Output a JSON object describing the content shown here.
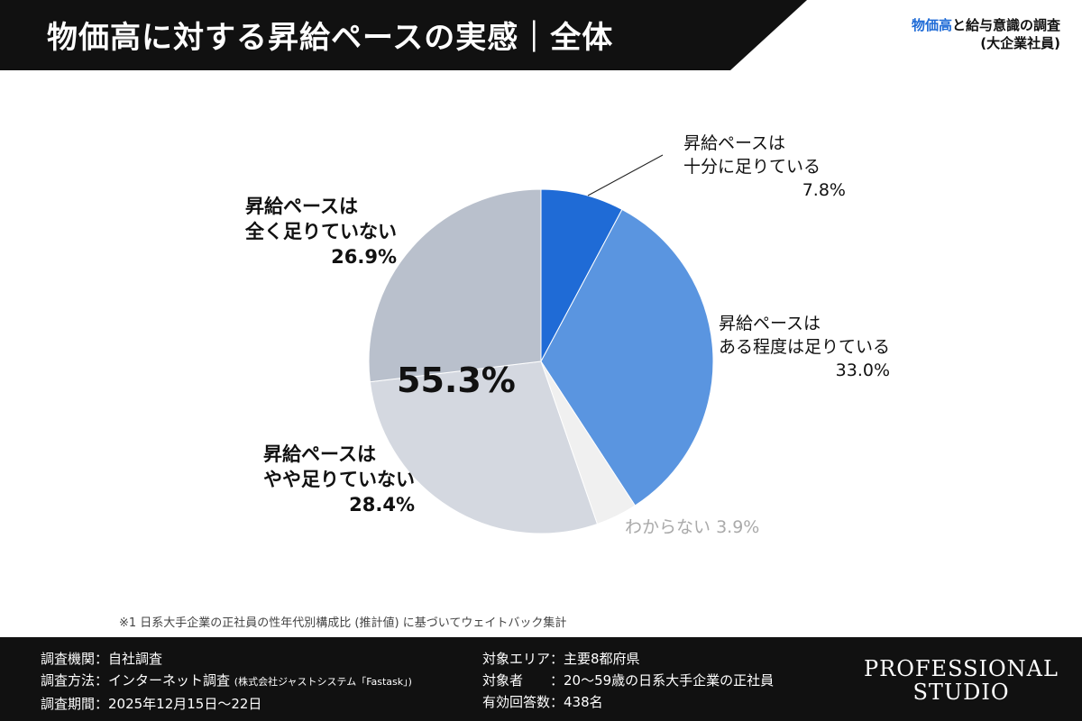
{
  "header": {
    "title": "物価高に対する昇給ペースの実感｜全体",
    "series_highlight": "物価高",
    "series_rest": "と給与意識の調査",
    "series_sub": "(大企業社員)"
  },
  "chart_data": {
    "type": "pie",
    "start": "top",
    "direction": "clockwise",
    "slices": [
      {
        "label": "昇給ペースは十分に足りている",
        "lines": [
          "昇給ペースは",
          "十分に足りている"
        ],
        "value": 7.8,
        "value_label": "7.8%",
        "color": "#1f6bd6"
      },
      {
        "label": "昇給ペースはある程度は足りている",
        "lines": [
          "昇給ペースは",
          "ある程度は足りている"
        ],
        "value": 33.0,
        "value_label": "33.0%",
        "color": "#5a95e0"
      },
      {
        "label": "わからない",
        "lines": [
          "わからない"
        ],
        "value": 3.9,
        "value_label": "3.9%",
        "color": "#f0f0f0"
      },
      {
        "label": "昇給ペースはやや足りていない",
        "lines": [
          "昇給ペースは",
          "やや足りていない"
        ],
        "value": 28.4,
        "value_label": "28.4%",
        "color": "#d4d8e0"
      },
      {
        "label": "昇給ペースは全く足りていない",
        "lines": [
          "昇給ペースは",
          "全く足りていない"
        ],
        "value": 26.9,
        "value_label": "26.9%",
        "color": "#b9c0cc"
      }
    ],
    "annotation": "55.3%"
  },
  "footnote": "※1  日系大手企業の正社員の性年代別構成比 (推計値) に基づいてウェイトバック集計",
  "footer": {
    "org": "調査機関：自社調査",
    "method": "調査方法：インターネット調査",
    "method_note": "(株式会社ジャストシステム「Fastask」)",
    "period": "調査期間：2025年12月15日〜22日",
    "area": "対象エリア：主要8都府県",
    "target": "対象者　　：20〜59歳の日系大手企業の正社員",
    "responses": "有効回答数：438名",
    "logo_line1": "PROFESSIONAL",
    "logo_line2": "STUDIO"
  }
}
